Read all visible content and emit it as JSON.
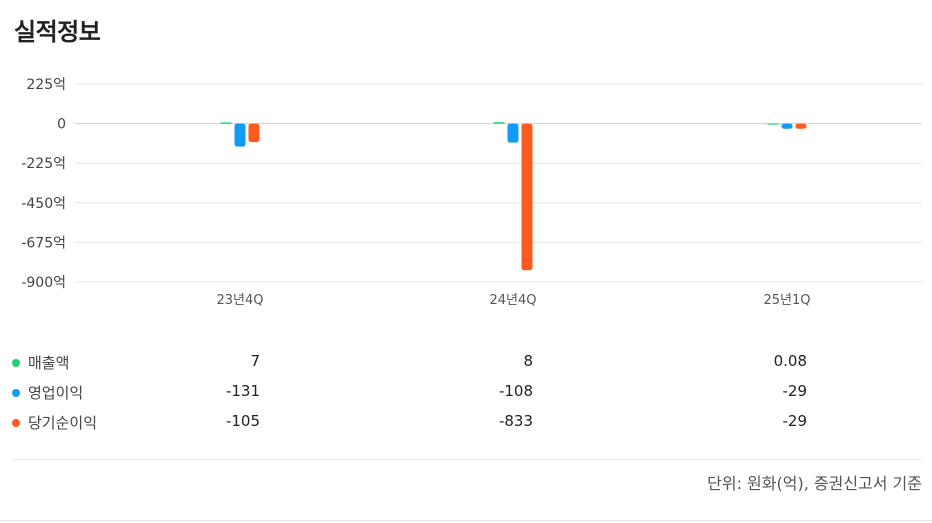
{
  "title": "실적정보",
  "chart_data": {
    "type": "bar",
    "categories": [
      "23년4Q",
      "24년4Q",
      "25년1Q"
    ],
    "series": [
      {
        "name": "매출액",
        "color": "#1fd36c",
        "values": [
          7,
          8,
          0.08
        ]
      },
      {
        "name": "영업이익",
        "color": "#119bf5",
        "values": [
          -131,
          -108,
          -29
        ]
      },
      {
        "name": "당기순이익",
        "color": "#ff5a1f",
        "values": [
          -105,
          -833,
          -29
        ]
      }
    ],
    "yticks": [
      "225억",
      "0",
      "-225억",
      "-450억",
      "-675억",
      "-900억"
    ],
    "ytick_values": [
      225,
      0,
      -225,
      -450,
      -675,
      -900
    ],
    "ylim": [
      -900,
      225
    ],
    "grid": true
  },
  "table": {
    "rows": [
      {
        "label": "매출액",
        "color": "#1fd36c",
        "values": [
          "7",
          "8",
          "0.08"
        ]
      },
      {
        "label": "영업이익",
        "color": "#119bf5",
        "values": [
          "-131",
          "-108",
          "-29"
        ]
      },
      {
        "label": "당기순이익",
        "color": "#ff5a1f",
        "values": [
          "-105",
          "-833",
          "-29"
        ]
      }
    ]
  },
  "unit_note": "단위: 원화(억), 증권신고서 기준"
}
